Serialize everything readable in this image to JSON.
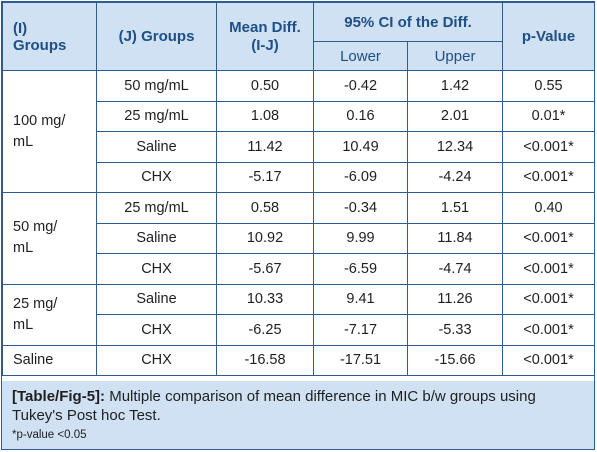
{
  "header": {
    "col_i_line1": "(I)",
    "col_i_line2": "Groups",
    "col_j": "(J) Groups",
    "col_mean_line1": "Mean Diff.",
    "col_mean_line2": "(I-J)",
    "col_ci": "95% CI of the Diff.",
    "col_lower": "Lower",
    "col_upper": "Upper",
    "col_p": "p-Value"
  },
  "groups": [
    {
      "label_line1": "100 mg/",
      "label_line2": "mL",
      "rows": [
        {
          "j": "50 mg/mL",
          "mean": "0.50",
          "lower": "-0.42",
          "upper": "1.42",
          "p": "0.55"
        },
        {
          "j": "25 mg/mL",
          "mean": "1.08",
          "lower": "0.16",
          "upper": "2.01",
          "p": "0.01*"
        },
        {
          "j": "Saline",
          "mean": "11.42",
          "lower": "10.49",
          "upper": "12.34",
          "p": "<0.001*"
        },
        {
          "j": "CHX",
          "mean": "-5.17",
          "lower": "-6.09",
          "upper": "-4.24",
          "p": "<0.001*"
        }
      ]
    },
    {
      "label_line1": "50 mg/",
      "label_line2": "mL",
      "rows": [
        {
          "j": "25 mg/mL",
          "mean": "0.58",
          "lower": "-0.34",
          "upper": "1.51",
          "p": "0.40"
        },
        {
          "j": "Saline",
          "mean": "10.92",
          "lower": "9.99",
          "upper": "11.84",
          "p": "<0.001*"
        },
        {
          "j": "CHX",
          "mean": "-5.67",
          "lower": "-6.59",
          "upper": "-4.74",
          "p": "<0.001*"
        }
      ]
    },
    {
      "label_line1": "25 mg/",
      "label_line2": "mL",
      "rows": [
        {
          "j": "Saline",
          "mean": "10.33",
          "lower": "9.41",
          "upper": "11.26",
          "p": "<0.001*"
        },
        {
          "j": "CHX",
          "mean": "-6.25",
          "lower": "-7.17",
          "upper": "-5.33",
          "p": "<0.001*"
        }
      ]
    },
    {
      "label_line1": "Saline",
      "label_line2": "",
      "rows": [
        {
          "j": "CHX",
          "mean": "-16.58",
          "lower": "-17.51",
          "upper": "-15.66",
          "p": "<0.001*"
        }
      ]
    }
  ],
  "caption": {
    "ref": "[Table/Fig-5]:",
    "text": " Multiple comparison of mean difference in MIC b/w groups using Tukey's Post hoc Test.",
    "note": "*p-value <0.05"
  },
  "colors": {
    "border": "#2e5c8e",
    "header_bg": "#cfe1f3",
    "header_text": "#1e4f86"
  }
}
